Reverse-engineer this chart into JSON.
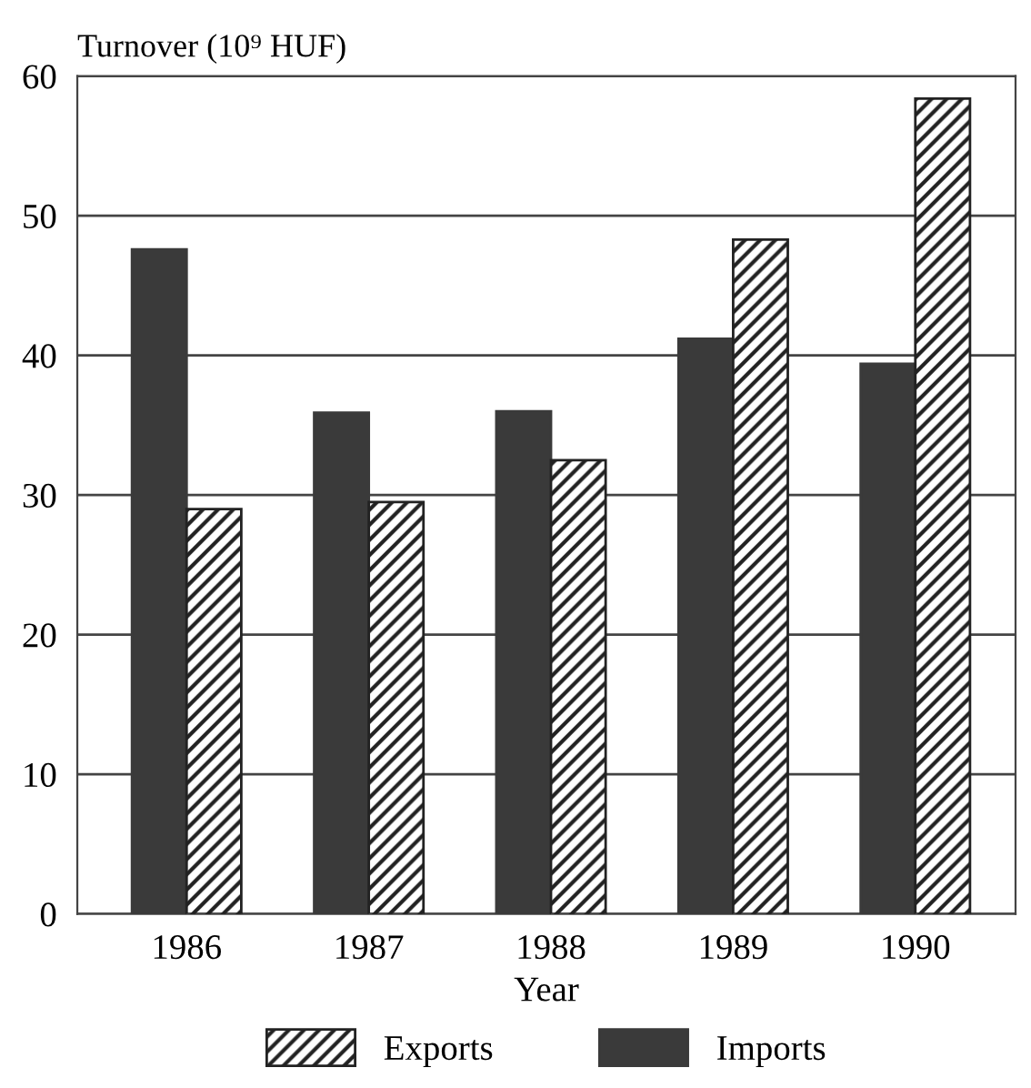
{
  "chart_data": {
    "type": "bar",
    "ylabel": "Turnover (10⁹ HUF)",
    "xlabel": "Year",
    "categories": [
      "1986",
      "1987",
      "1988",
      "1989",
      "1990"
    ],
    "series": [
      {
        "name": "Imports",
        "color": "#3a3a3a",
        "values": [
          47.6,
          35.9,
          36.0,
          41.2,
          39.4
        ]
      },
      {
        "name": "Exports",
        "color": "#222222",
        "values": [
          29.0,
          29.5,
          32.5,
          48.3,
          58.4
        ]
      }
    ],
    "ylim": [
      0,
      60
    ],
    "yticks": [
      0,
      10,
      20,
      30,
      40,
      50,
      60
    ],
    "grid": "y",
    "legend": "bottom"
  }
}
